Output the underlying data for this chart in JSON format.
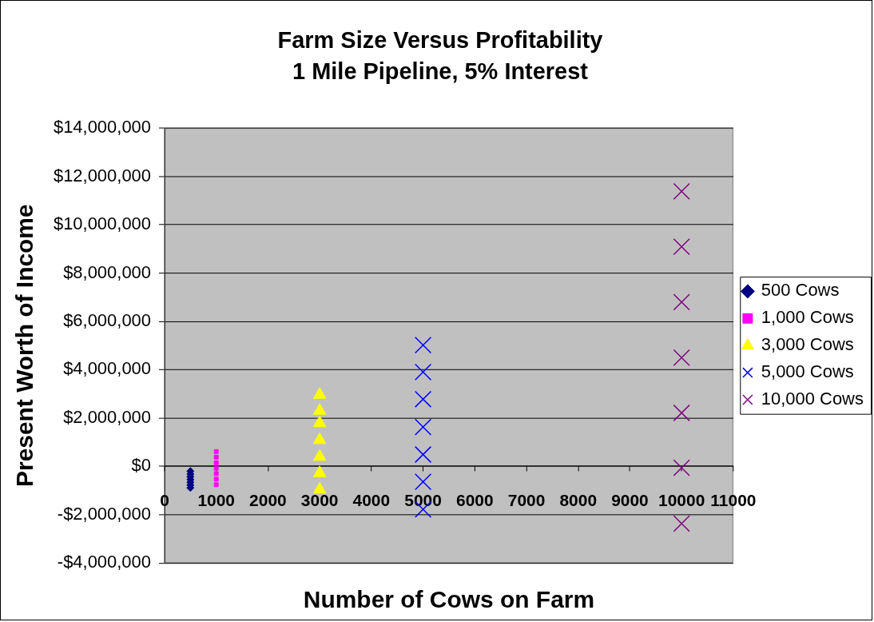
{
  "chart_data": {
    "type": "scatter",
    "title": "Farm Size Versus Profitability",
    "subtitle": "1 Mile Pipeline, 5% Interest",
    "xlabel": "Number of Cows on Farm",
    "ylabel": "Present Worth of Income",
    "xlim": [
      0,
      11000
    ],
    "xticks": [
      0,
      1000,
      2000,
      3000,
      4000,
      5000,
      6000,
      7000,
      8000,
      9000,
      10000,
      11000
    ],
    "ylim": [
      -4000000,
      14000000
    ],
    "yticks": [
      {
        "value": -4000000,
        "label": "-$4,000,000"
      },
      {
        "value": -2000000,
        "label": "-$2,000,000"
      },
      {
        "value": 0,
        "label": "$0"
      },
      {
        "value": 2000000,
        "label": "$2,000,000"
      },
      {
        "value": 4000000,
        "label": "$4,000,000"
      },
      {
        "value": 6000000,
        "label": "$6,000,000"
      },
      {
        "value": 8000000,
        "label": "$8,000,000"
      },
      {
        "value": 10000000,
        "label": "$10,000,000"
      },
      {
        "value": 12000000,
        "label": "$12,000,000"
      },
      {
        "value": 14000000,
        "label": "$14,000,000"
      }
    ],
    "grid": "y",
    "legend": "right",
    "series": [
      {
        "name": "500 Cows",
        "color": "#000080",
        "marker": "diamond",
        "x": [
          500,
          500,
          500,
          500,
          500,
          500,
          500
        ],
        "values": [
          -200000,
          -320000,
          -430000,
          -550000,
          -660000,
          -780000,
          -890000
        ]
      },
      {
        "name": "1,000 Cows",
        "color": "#ff00ff",
        "marker": "square",
        "x": [
          1000,
          1000,
          1000,
          1000,
          1000,
          1000,
          1000
        ],
        "values": [
          610000,
          380000,
          150000,
          -80000,
          -300000,
          -530000,
          -760000
        ]
      },
      {
        "name": "3,000 Cows",
        "color": "#ffff00",
        "marker": "triangle",
        "x": [
          3000,
          3000,
          3000,
          3000,
          3000,
          3000,
          3000
        ],
        "values": [
          2960000,
          2300000,
          1790000,
          1090000,
          400000,
          -280000,
          -960000
        ]
      },
      {
        "name": "5,000 Cows",
        "color": "#0000ff",
        "marker": "cross",
        "x": [
          5000,
          5000,
          5000,
          5000,
          5000,
          5000,
          5000
        ],
        "values": [
          5020000,
          3900000,
          2780000,
          1630000,
          490000,
          -640000,
          -1780000
        ]
      },
      {
        "name": "10,000 Cows",
        "color": "#800080",
        "marker": "cross",
        "x": [
          10000,
          10000,
          10000,
          10000,
          10000,
          10000,
          10000
        ],
        "values": [
          11380000,
          9090000,
          6800000,
          4500000,
          2210000,
          -60000,
          -2370000
        ]
      }
    ]
  }
}
